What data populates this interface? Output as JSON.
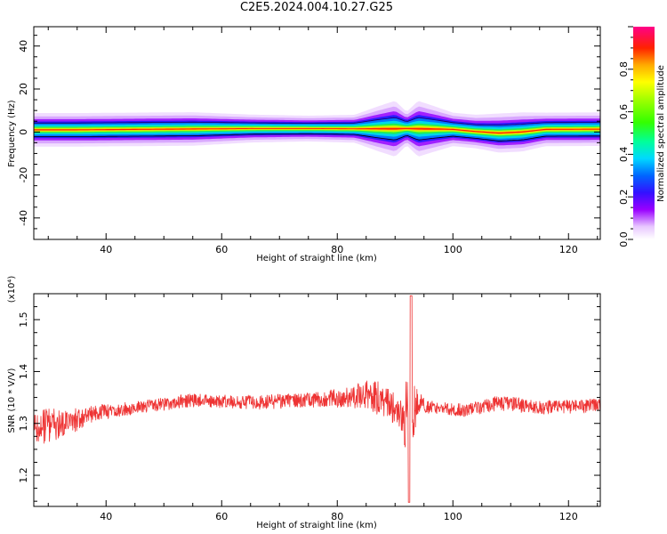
{
  "title": "C2E5.2024.004.10.27.G25",
  "chart_data": [
    {
      "type": "heatmap",
      "xlabel": "Height of straight line (km)",
      "ylabel": "Frequency (Hz)",
      "xlim": [
        27.5,
        125.5
      ],
      "ylim": [
        -50,
        49
      ],
      "xticks": [
        "40",
        "60",
        "80",
        "100",
        "120"
      ],
      "yticks": [
        "-40",
        "-20",
        "0",
        "20",
        "40"
      ],
      "colorbar": {
        "label": "Normalized spectral amplitude",
        "range": [
          0,
          1
        ],
        "ticks": [
          "0.0",
          "0.2",
          "0.4",
          "0.6",
          "0.8"
        ]
      },
      "ridge": [
        {
          "x": 28,
          "freq": 1,
          "width": 3
        },
        {
          "x": 35,
          "freq": 1,
          "width": 3
        },
        {
          "x": 45,
          "freq": 1.2,
          "width": 3
        },
        {
          "x": 55,
          "freq": 1.4,
          "width": 3
        },
        {
          "x": 65,
          "freq": 1.6,
          "width": 2.5
        },
        {
          "x": 75,
          "freq": 1.6,
          "width": 2.3
        },
        {
          "x": 83,
          "freq": 1.5,
          "width": 2.5
        },
        {
          "x": 87,
          "freq": 1.5,
          "width": 4
        },
        {
          "x": 90,
          "freq": 1.5,
          "width": 5
        },
        {
          "x": 92,
          "freq": 1.6,
          "width": 3
        },
        {
          "x": 94,
          "freq": 1.5,
          "width": 5
        },
        {
          "x": 97,
          "freq": 1.4,
          "width": 4
        },
        {
          "x": 100,
          "freq": 1.2,
          "width": 3
        },
        {
          "x": 104,
          "freq": 0.2,
          "width": 3
        },
        {
          "x": 108,
          "freq": -0.5,
          "width": 3.5
        },
        {
          "x": 112,
          "freq": 0,
          "width": 3.5
        },
        {
          "x": 116,
          "freq": 1.2,
          "width": 3
        },
        {
          "x": 125.5,
          "freq": 1.3,
          "width": 3
        }
      ]
    },
    {
      "type": "line",
      "xlabel": "Height of straight line (km)",
      "ylabel": "SNR (10 * V/V)",
      "multiplier": "(x10⁴)",
      "xlim": [
        27.5,
        125.5
      ],
      "ylim": [
        11400,
        15500
      ],
      "xticks": [
        "40",
        "60",
        "80",
        "100",
        "120"
      ],
      "yticks": [
        "1.2",
        "1.3",
        "1.4",
        "1.5"
      ],
      "color": "#ee3333",
      "envelope": [
        {
          "x": 27.5,
          "mean": 12900,
          "amp": 300
        },
        {
          "x": 30,
          "mean": 12950,
          "amp": 350
        },
        {
          "x": 33,
          "mean": 13000,
          "amp": 280
        },
        {
          "x": 38,
          "mean": 13200,
          "amp": 160
        },
        {
          "x": 45,
          "mean": 13300,
          "amp": 130
        },
        {
          "x": 55,
          "mean": 13450,
          "amp": 130
        },
        {
          "x": 65,
          "mean": 13400,
          "amp": 140
        },
        {
          "x": 75,
          "mean": 13450,
          "amp": 150
        },
        {
          "x": 82,
          "mean": 13500,
          "amp": 200
        },
        {
          "x": 86,
          "mean": 13550,
          "amp": 350
        },
        {
          "x": 89,
          "mean": 13400,
          "amp": 300
        },
        {
          "x": 91,
          "mean": 13100,
          "amp": 350
        },
        {
          "x": 92.5,
          "mean": 13200,
          "amp": 900
        },
        {
          "x": 94,
          "mean": 13400,
          "amp": 200
        },
        {
          "x": 97,
          "mean": 13300,
          "amp": 120
        },
        {
          "x": 102,
          "mean": 13250,
          "amp": 130
        },
        {
          "x": 108,
          "mean": 13400,
          "amp": 150
        },
        {
          "x": 115,
          "mean": 13300,
          "amp": 140
        },
        {
          "x": 125.5,
          "mean": 13350,
          "amp": 130
        }
      ]
    }
  ]
}
